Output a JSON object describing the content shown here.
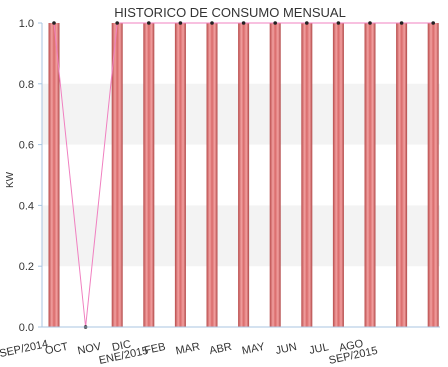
{
  "chart_data": {
    "type": "bar",
    "title": "HISTORICO DE CONSUMO MENSUAL",
    "ylabel": "KW",
    "xlabel": "",
    "ylim": [
      0,
      1
    ],
    "yticks": [
      "0.0",
      "0.2",
      "0.4",
      "0.6",
      "0.8",
      "1.0"
    ],
    "categories": [
      "SEP/2014",
      "OCT",
      "NOV",
      "DIC",
      "ENE/2015",
      "FEB",
      "MAR",
      "ABR",
      "MAY",
      "JUN",
      "JUL",
      "AGO",
      "SEP/2015"
    ],
    "tick_labels": [
      {
        "lines": [
          "SEP/2014"
        ]
      },
      {
        "lines": [
          "OCT"
        ]
      },
      {
        "lines": [
          "NOV"
        ]
      },
      {
        "lines": [
          "DIC",
          "ENE/2015"
        ]
      },
      {
        "lines": [
          "FEB"
        ]
      },
      {
        "lines": [
          "MAR"
        ]
      },
      {
        "lines": [
          "ABR"
        ]
      },
      {
        "lines": [
          "MAY"
        ]
      },
      {
        "lines": [
          "JUN"
        ]
      },
      {
        "lines": [
          "JUL"
        ]
      },
      {
        "lines": [
          "AGO",
          "SEP/2015"
        ]
      }
    ],
    "bar_values": [
      1,
      0,
      1,
      1,
      1,
      1,
      1,
      1,
      1,
      1,
      1,
      1,
      1
    ],
    "line_values": [
      1,
      0,
      1,
      1,
      1,
      1,
      1,
      1,
      1,
      1,
      1,
      1,
      1
    ],
    "grid": "alternating horizontal bands",
    "colors": {
      "bar_edge": "#b84a4a",
      "bar_mid": "#f2a0a0",
      "bar_center": "#d96a6a",
      "line": "#f080c0",
      "band": "#f3f3f3",
      "axis": "#a9c6e0"
    }
  }
}
